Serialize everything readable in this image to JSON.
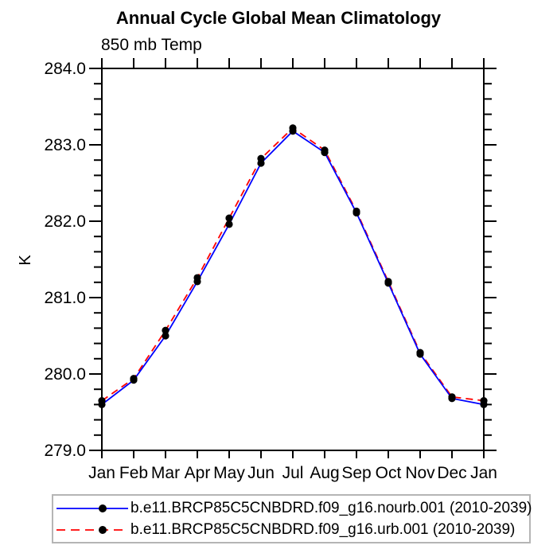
{
  "chart_data": {
    "type": "line",
    "title": "Annual Cycle Global Mean Climatology",
    "subtitle": "850 mb Temp",
    "xlabel": "",
    "ylabel": "K",
    "categories": [
      "Jan",
      "Feb",
      "Mar",
      "Apr",
      "May",
      "Jun",
      "Jul",
      "Aug",
      "Sep",
      "Oct",
      "Nov",
      "Dec",
      "Jan"
    ],
    "ylim": [
      279.0,
      284.0
    ],
    "ytick_step": 1.0,
    "yminor_step": 0.2,
    "ytick_labels": [
      "279.0",
      "280.0",
      "281.0",
      "282.0",
      "283.0",
      "284.0"
    ],
    "grid": false,
    "legend_position": "bottom",
    "axis_color": "#000000",
    "marker": "filled-circle",
    "marker_color": "#000000",
    "series": [
      {
        "name": "b.e11.BRCP85C5CNBDRD.f09_g16.nourb.001 (2010-2039)",
        "color": "#0000ff",
        "style": "solid",
        "values": [
          279.6,
          279.92,
          280.5,
          281.21,
          281.96,
          282.76,
          283.18,
          282.9,
          282.11,
          281.19,
          280.26,
          279.68,
          279.6
        ]
      },
      {
        "name": "b.e11.BRCP85C5CNBDRD.f09_g16.urb.001 (2010-2039)",
        "color": "#ff0000",
        "style": "dashed",
        "values": [
          279.65,
          279.94,
          280.57,
          281.26,
          282.04,
          282.82,
          283.22,
          282.93,
          282.13,
          281.21,
          280.28,
          279.7,
          279.65
        ]
      }
    ]
  }
}
